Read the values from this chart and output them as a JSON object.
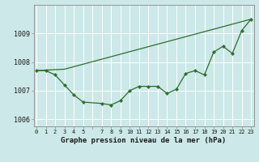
{
  "title": "Graphe pression niveau de la mer (hPa)",
  "background_color": "#cce8e8",
  "grid_color": "#ffffff",
  "line_color": "#2d6e2d",
  "ylim": [
    1005.75,
    1010.0
  ],
  "yticks": [
    1006,
    1007,
    1008,
    1009
  ],
  "xticks": [
    0,
    1,
    2,
    3,
    4,
    5,
    6,
    7,
    8,
    9,
    10,
    11,
    12,
    13,
    14,
    15,
    16,
    17,
    18,
    19,
    20,
    21,
    22,
    23
  ],
  "xlabels": [
    "0",
    "1",
    "2",
    "3",
    "4",
    "5",
    "",
    "7",
    "8",
    "9",
    "10",
    "11",
    "12",
    "13",
    "14",
    "15",
    "16",
    "17",
    "18",
    "19",
    "20",
    "21",
    "22",
    "23"
  ],
  "xlim": [
    -0.3,
    23.3
  ],
  "line1_x": [
    0,
    1,
    2,
    3,
    4,
    5,
    7,
    8,
    9,
    10,
    11,
    12,
    13,
    14,
    15,
    16,
    17,
    18,
    19,
    20,
    21,
    22,
    23
  ],
  "line1_y": [
    1007.7,
    1007.7,
    1007.55,
    1007.2,
    1006.85,
    1006.6,
    1006.55,
    1006.5,
    1006.65,
    1007.0,
    1007.15,
    1007.15,
    1007.15,
    1006.9,
    1007.05,
    1007.6,
    1007.7,
    1007.55,
    1008.35,
    1008.55,
    1008.3,
    1009.1,
    1009.5
  ],
  "line2_x": [
    0,
    3,
    23
  ],
  "line2_y": [
    1007.7,
    1007.75,
    1009.5
  ]
}
